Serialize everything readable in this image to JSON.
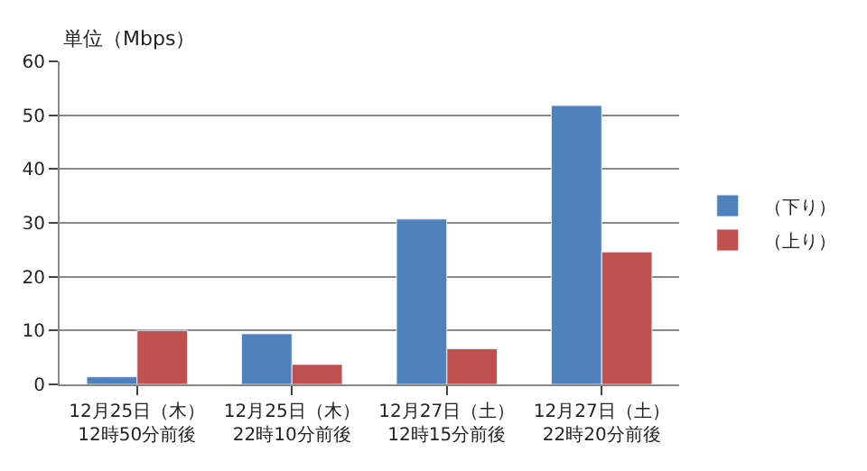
{
  "chart_data": {
    "type": "bar",
    "ylabel": "単位（Mbps）",
    "categories": [
      "12月25日（木）\n12時50分前後",
      "12月25日（木）\n22時10分前後",
      "12月27日（土）\n12時15分前後",
      "12月27日（土）\n22時20分前後"
    ],
    "series": [
      {
        "name": "（下り）",
        "color": "#4f81bd",
        "values": [
          1.4,
          9.4,
          30.7,
          51.8
        ]
      },
      {
        "name": "（上り）",
        "color": "#c0504d",
        "values": [
          10,
          3.7,
          6.6,
          24.6
        ]
      }
    ],
    "ylim": [
      0,
      60
    ],
    "yticks": [
      0,
      10,
      20,
      30,
      40,
      50,
      60
    ],
    "grid": "y",
    "legend": "right"
  }
}
